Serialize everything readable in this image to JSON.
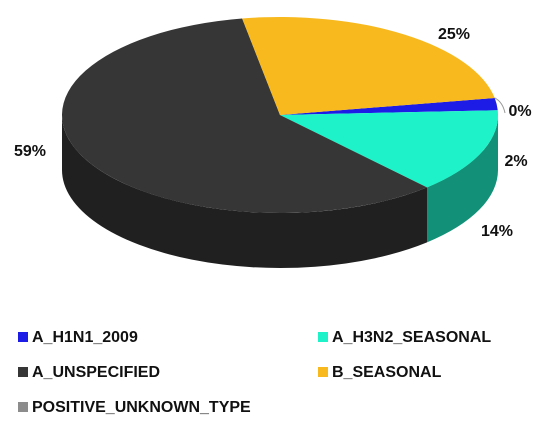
{
  "chart_data": {
    "type": "pie",
    "series": [
      {
        "name": "A_H1N1_2009",
        "color": "#1c1ce6",
        "value": 2,
        "value_label": "2%"
      },
      {
        "name": "A_H3N2_SEASONAL",
        "color": "#1ef2c8",
        "value": 14,
        "value_label": "14%"
      },
      {
        "name": "A_UNSPECIFIED",
        "color": "#363636",
        "value": 59,
        "value_label": "59%"
      },
      {
        "name": "B_SEASONAL",
        "color": "#f7b91e",
        "value": 25,
        "value_label": "25%"
      },
      {
        "name": "POSITIVE_UNKNOWN_TYPE",
        "color": "#8c8c8c",
        "value": 0,
        "value_label": "0%"
      }
    ],
    "legend": "bottom"
  }
}
